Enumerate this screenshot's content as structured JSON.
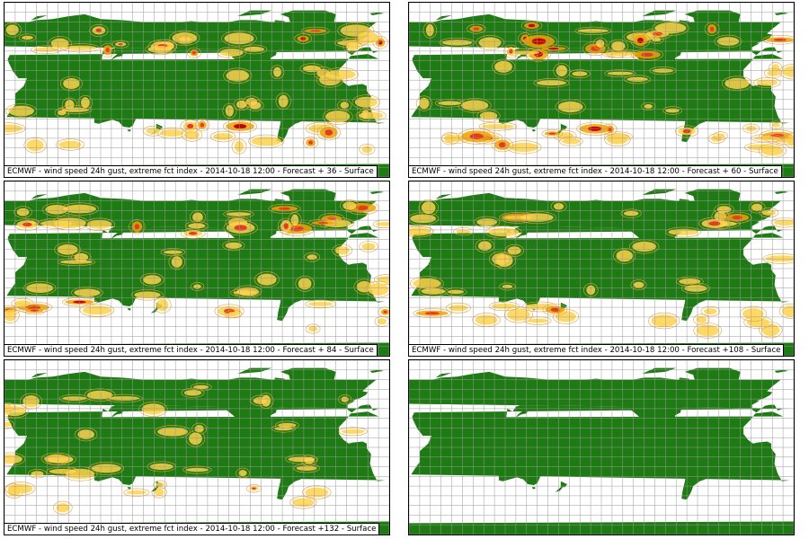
{
  "figure": {
    "panels": [
      {
        "caption": "ECMWF - wind speed 24h gust, extreme fct index - 2014-10-18 12:00 - Forecast + 36 - Surface",
        "has_field": true,
        "intensity": 0.9,
        "seed": 11
      },
      {
        "caption": "ECMWF - wind speed 24h gust, extreme fct index - 2014-10-18 12:00 - Forecast + 60 - Surface",
        "has_field": true,
        "intensity": 1.0,
        "seed": 23
      },
      {
        "caption": "ECMWF - wind speed 24h gust, extreme fct index - 2014-10-18 12:00 - Forecast + 84 - Surface",
        "has_field": true,
        "intensity": 0.85,
        "seed": 37
      },
      {
        "caption": "ECMWF - wind speed 24h gust, extreme fct index - 2014-10-18 12:00 - Forecast +108 - Surface",
        "has_field": true,
        "intensity": 0.75,
        "seed": 41
      },
      {
        "caption": "ECMWF - wind speed 24h gust, extreme fct index - 2014-10-18 12:00 - Forecast +132 - Surface",
        "has_field": true,
        "intensity": 0.6,
        "seed": 53
      },
      {
        "caption": "",
        "has_field": false,
        "intensity": 0,
        "seed": 0
      }
    ],
    "colors": {
      "land": "#1e7a12",
      "ocean": "#ffffff",
      "grid": "#9a9a9a",
      "contour": "#e8a13a",
      "field_low": "#ffd24a",
      "field_mid": "#f2a200",
      "field_high": "#e63b1e",
      "field_peak": "#c80000"
    }
  }
}
